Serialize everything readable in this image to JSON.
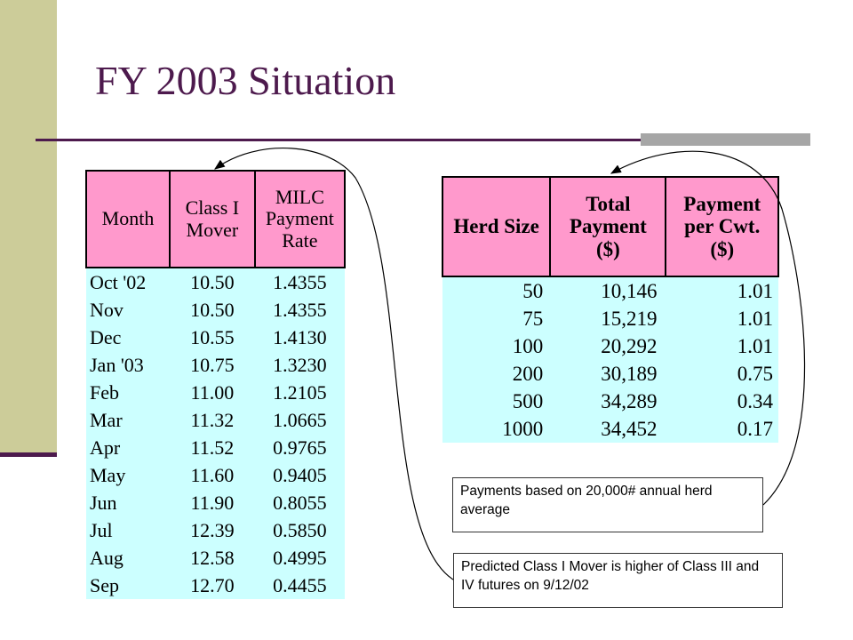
{
  "slide": {
    "title": "FY 2003 Situation"
  },
  "milc_table": {
    "headers": {
      "month": "Month",
      "mover": "Class I\nMover",
      "rate": "MILC\nPayment\nRate"
    },
    "rows": [
      {
        "month": "Oct '02",
        "mover": "10.50",
        "rate": "1.4355"
      },
      {
        "month": "Nov",
        "mover": "10.50",
        "rate": "1.4355"
      },
      {
        "month": "Dec",
        "mover": "10.55",
        "rate": "1.4130"
      },
      {
        "month": "Jan '03",
        "mover": "10.75",
        "rate": "1.3230"
      },
      {
        "month": "Feb",
        "mover": "11.00",
        "rate": "1.2105"
      },
      {
        "month": "Mar",
        "mover": "11.32",
        "rate": "1.0665"
      },
      {
        "month": "Apr",
        "mover": "11.52",
        "rate": "0.9765"
      },
      {
        "month": "May",
        "mover": "11.60",
        "rate": "0.9405"
      },
      {
        "month": "Jun",
        "mover": "11.90",
        "rate": "0.8055"
      },
      {
        "month": "Jul",
        "mover": "12.39",
        "rate": "0.5850"
      },
      {
        "month": "Aug",
        "mover": "12.58",
        "rate": "0.4995"
      },
      {
        "month": "Sep",
        "mover": "12.70",
        "rate": "0.4455"
      }
    ]
  },
  "herd_table": {
    "headers": {
      "herd_size": "Herd Size",
      "total": "Total\nPayment\n($)",
      "per_cwt": "Payment\nper Cwt.\n($)"
    },
    "rows": [
      {
        "herd_size": "50",
        "total": "10,146",
        "per_cwt": "1.01"
      },
      {
        "herd_size": "75",
        "total": "15,219",
        "per_cwt": "1.01"
      },
      {
        "herd_size": "100",
        "total": "20,292",
        "per_cwt": "1.01"
      },
      {
        "herd_size": "200",
        "total": "30,189",
        "per_cwt": "0.75"
      },
      {
        "herd_size": "500",
        "total": "34,289",
        "per_cwt": "0.34"
      },
      {
        "herd_size": "1000",
        "total": "34,452",
        "per_cwt": "0.17"
      }
    ]
  },
  "notes": {
    "payments": "Payments based on 20,000# annual herd average",
    "predicted": "Predicted Class I Mover is higher of Class III and IV futures on 9/12/02"
  },
  "colors": {
    "header_fill": "#ff99cc",
    "body_fill": "#ccffff",
    "accent": "#4d1a4d",
    "sidebar": "#cccc99"
  }
}
